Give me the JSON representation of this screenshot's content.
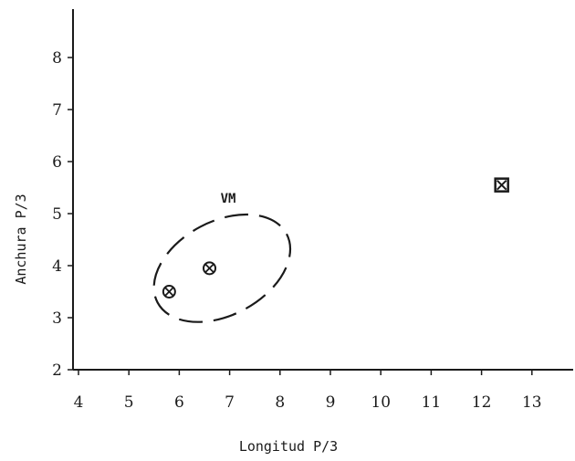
{
  "chart_data": {
    "type": "scatter",
    "title": "",
    "xlabel": "Longitud P/3",
    "ylabel": "Anchura P/3",
    "xlim": [
      4,
      14
    ],
    "ylim": [
      2,
      9
    ],
    "xticks": [
      4,
      5,
      6,
      7,
      8,
      9,
      10,
      11,
      12,
      13
    ],
    "yticks": [
      2,
      3,
      4,
      5,
      6,
      7,
      8
    ],
    "grid": false,
    "series": [
      {
        "marker": "circle-x",
        "points": [
          {
            "x": 5.8,
            "y": 3.5
          },
          {
            "x": 6.6,
            "y": 3.95
          }
        ]
      },
      {
        "marker": "square-x",
        "points": [
          {
            "x": 12.4,
            "y": 5.55
          }
        ]
      }
    ],
    "annotations": [
      {
        "text": "VM",
        "type": "dashed-ellipse",
        "center": {
          "x": 6.85,
          "y": 3.95
        },
        "rx": 1.45,
        "ry": 0.9,
        "rotation_deg": -28,
        "label_at": {
          "x": 7.0,
          "y": 5.3
        }
      }
    ]
  }
}
